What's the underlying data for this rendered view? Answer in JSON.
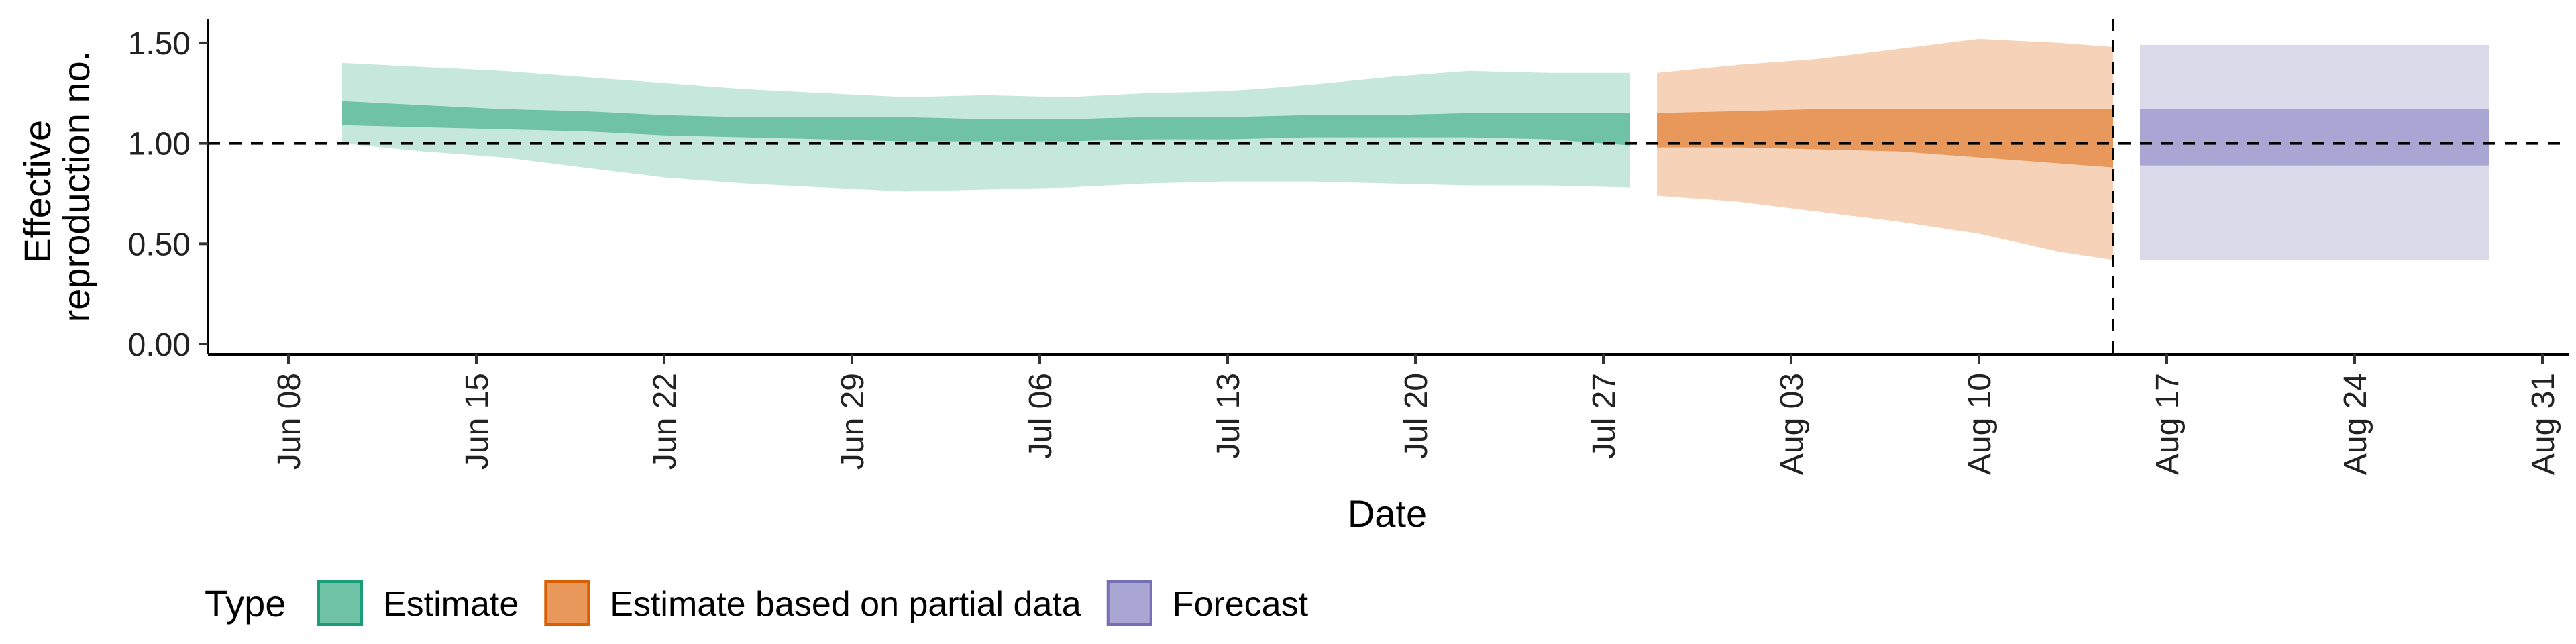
{
  "chart_data": {
    "type": "area",
    "title": "",
    "xlabel": "Date",
    "ylabel_lines": [
      "Effective",
      "reproduction no."
    ],
    "x_domain": [
      "2020-06-05",
      "2020-09-01"
    ],
    "ylim": [
      -0.05,
      1.62
    ],
    "y_ticks": [
      {
        "value": 0.0,
        "label": "0.00"
      },
      {
        "value": 0.5,
        "label": "0.50"
      },
      {
        "value": 1.0,
        "label": "1.00"
      },
      {
        "value": 1.5,
        "label": "1.50"
      }
    ],
    "x_ticks": [
      {
        "date": "2020-06-08",
        "label": "Jun 08"
      },
      {
        "date": "2020-06-15",
        "label": "Jun 15"
      },
      {
        "date": "2020-06-22",
        "label": "Jun 22"
      },
      {
        "date": "2020-06-29",
        "label": "Jun 29"
      },
      {
        "date": "2020-07-06",
        "label": "Jul 06"
      },
      {
        "date": "2020-07-13",
        "label": "Jul 13"
      },
      {
        "date": "2020-07-20",
        "label": "Jul 20"
      },
      {
        "date": "2020-07-27",
        "label": "Jul 27"
      },
      {
        "date": "2020-08-03",
        "label": "Aug 03"
      },
      {
        "date": "2020-08-10",
        "label": "Aug 10"
      },
      {
        "date": "2020-08-17",
        "label": "Aug 17"
      },
      {
        "date": "2020-08-24",
        "label": "Aug 24"
      },
      {
        "date": "2020-08-31",
        "label": "Aug 31"
      }
    ],
    "reference_line_y": 1.0,
    "reference_line_date": "2020-08-15",
    "grid": false,
    "legend": {
      "position": "bottom",
      "title": "Type",
      "entries": [
        {
          "label": "Estimate",
          "fill": "#6fc2a6",
          "stroke": "#1b9e77"
        },
        {
          "label": "Estimate based on partial data",
          "fill": "#e8985a",
          "stroke": "#d95f02"
        },
        {
          "label": "Forecast",
          "fill": "#a9a6d4",
          "stroke": "#7570b3"
        }
      ]
    },
    "series": [
      {
        "name": "Estimate",
        "outer_color": "#c5e7dc",
        "inner_color": "#6fc2a6",
        "points": [
          {
            "date": "2020-06-10",
            "lo90": 1.0,
            "lo50": 1.09,
            "hi50": 1.21,
            "hi90": 1.4
          },
          {
            "date": "2020-06-13",
            "lo90": 0.96,
            "lo50": 1.08,
            "hi50": 1.19,
            "hi90": 1.38
          },
          {
            "date": "2020-06-16",
            "lo90": 0.93,
            "lo50": 1.07,
            "hi50": 1.17,
            "hi90": 1.36
          },
          {
            "date": "2020-06-19",
            "lo90": 0.88,
            "lo50": 1.06,
            "hi50": 1.16,
            "hi90": 1.33
          },
          {
            "date": "2020-06-22",
            "lo90": 0.83,
            "lo50": 1.04,
            "hi50": 1.14,
            "hi90": 1.3
          },
          {
            "date": "2020-06-25",
            "lo90": 0.8,
            "lo50": 1.03,
            "hi50": 1.13,
            "hi90": 1.27
          },
          {
            "date": "2020-06-28",
            "lo90": 0.78,
            "lo50": 1.02,
            "hi50": 1.13,
            "hi90": 1.25
          },
          {
            "date": "2020-07-01",
            "lo90": 0.76,
            "lo50": 1.01,
            "hi50": 1.13,
            "hi90": 1.23
          },
          {
            "date": "2020-07-04",
            "lo90": 0.77,
            "lo50": 1.01,
            "hi50": 1.12,
            "hi90": 1.24
          },
          {
            "date": "2020-07-07",
            "lo90": 0.78,
            "lo50": 1.01,
            "hi50": 1.12,
            "hi90": 1.23
          },
          {
            "date": "2020-07-10",
            "lo90": 0.8,
            "lo50": 1.02,
            "hi50": 1.13,
            "hi90": 1.25
          },
          {
            "date": "2020-07-13",
            "lo90": 0.81,
            "lo50": 1.02,
            "hi50": 1.13,
            "hi90": 1.26
          },
          {
            "date": "2020-07-16",
            "lo90": 0.81,
            "lo50": 1.03,
            "hi50": 1.14,
            "hi90": 1.29
          },
          {
            "date": "2020-07-19",
            "lo90": 0.8,
            "lo50": 1.03,
            "hi50": 1.14,
            "hi90": 1.33
          },
          {
            "date": "2020-07-22",
            "lo90": 0.79,
            "lo50": 1.03,
            "hi50": 1.15,
            "hi90": 1.36
          },
          {
            "date": "2020-07-25",
            "lo90": 0.79,
            "lo50": 1.02,
            "hi50": 1.15,
            "hi90": 1.35
          },
          {
            "date": "2020-07-28",
            "lo90": 0.78,
            "lo50": 0.99,
            "hi50": 1.15,
            "hi90": 1.35
          }
        ]
      },
      {
        "name": "Estimate based on partial data",
        "outer_color": "#f5d2b8",
        "inner_color": "#e8985a",
        "points": [
          {
            "date": "2020-07-29",
            "lo90": 0.74,
            "lo50": 0.98,
            "hi50": 1.15,
            "hi90": 1.35
          },
          {
            "date": "2020-08-01",
            "lo90": 0.71,
            "lo50": 0.98,
            "hi50": 1.16,
            "hi90": 1.39
          },
          {
            "date": "2020-08-04",
            "lo90": 0.66,
            "lo50": 0.97,
            "hi50": 1.17,
            "hi90": 1.42
          },
          {
            "date": "2020-08-07",
            "lo90": 0.61,
            "lo50": 0.96,
            "hi50": 1.17,
            "hi90": 1.47
          },
          {
            "date": "2020-08-10",
            "lo90": 0.55,
            "lo50": 0.93,
            "hi50": 1.17,
            "hi90": 1.52
          },
          {
            "date": "2020-08-13",
            "lo90": 0.46,
            "lo50": 0.9,
            "hi50": 1.17,
            "hi90": 1.5
          },
          {
            "date": "2020-08-15",
            "lo90": 0.42,
            "lo50": 0.88,
            "hi50": 1.17,
            "hi90": 1.48
          }
        ]
      },
      {
        "name": "Forecast",
        "outer_color": "#dadaeb",
        "inner_color": "#a9a6d4",
        "points": [
          {
            "date": "2020-08-16",
            "lo90": 0.42,
            "lo50": 0.89,
            "hi50": 1.17,
            "hi90": 1.49
          },
          {
            "date": "2020-08-29",
            "lo90": 0.42,
            "lo50": 0.89,
            "hi50": 1.17,
            "hi90": 1.49
          }
        ]
      }
    ]
  }
}
